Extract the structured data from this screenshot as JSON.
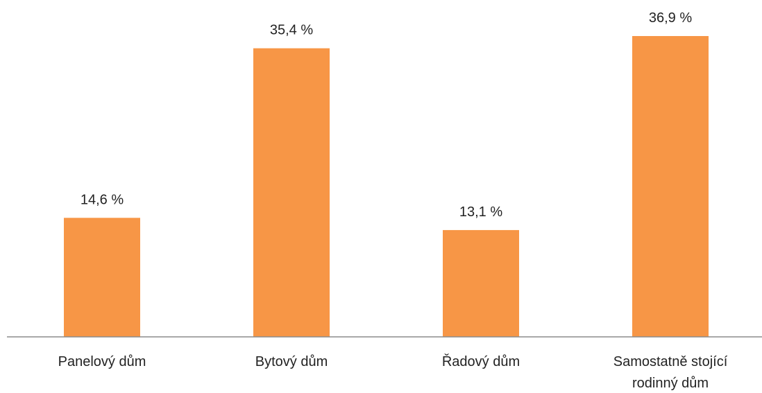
{
  "chart_data": {
    "type": "bar",
    "categories": [
      [
        "Panelový dům"
      ],
      [
        "Bytový dům"
      ],
      [
        "Řadový dům"
      ],
      [
        "Samostatně stojící",
        "rodinný dům"
      ]
    ],
    "values": [
      14.6,
      35.4,
      13.1,
      36.9
    ],
    "data_labels": [
      "14,6 %",
      "35,4 %",
      "13,1 %",
      "36,9 %"
    ],
    "unit": "%",
    "title": "",
    "xlabel": "",
    "ylabel": "",
    "ylim": [
      0,
      36.9
    ],
    "grid": false,
    "legend": "none",
    "colors": {
      "bar": "#F79646",
      "axis": "#8c8c8c",
      "text": "#222222"
    }
  }
}
